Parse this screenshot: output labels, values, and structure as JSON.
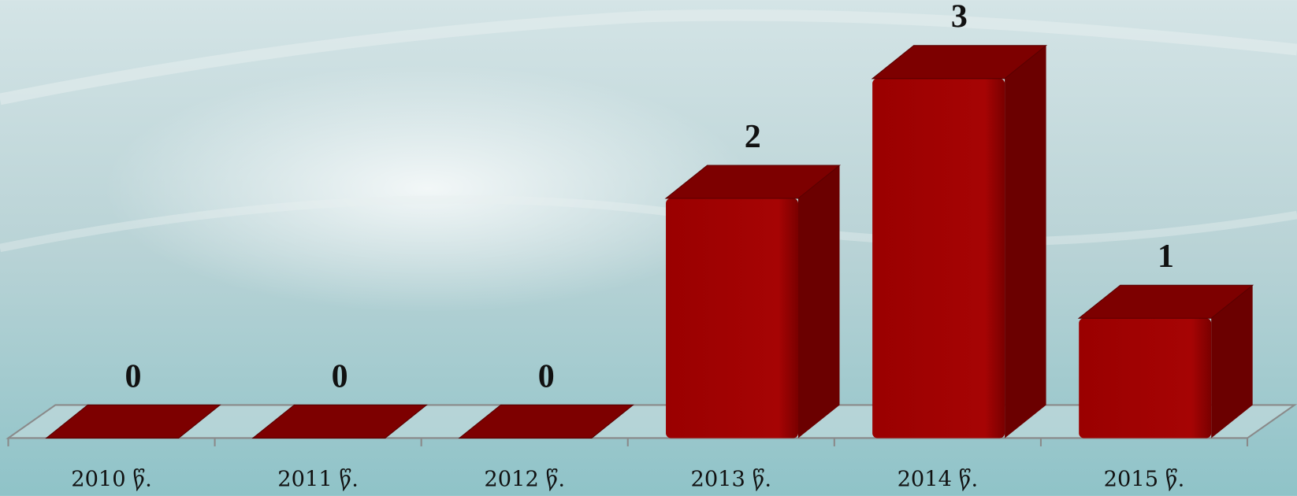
{
  "chart_data": {
    "type": "bar3d",
    "categories": [
      "2010 წ.",
      "2011 წ.",
      "2012 წ.",
      "2013 წ.",
      "2014 წ.",
      "2015 წ."
    ],
    "values": [
      0,
      0,
      0,
      2,
      3,
      1
    ],
    "color": "#a00000"
  }
}
